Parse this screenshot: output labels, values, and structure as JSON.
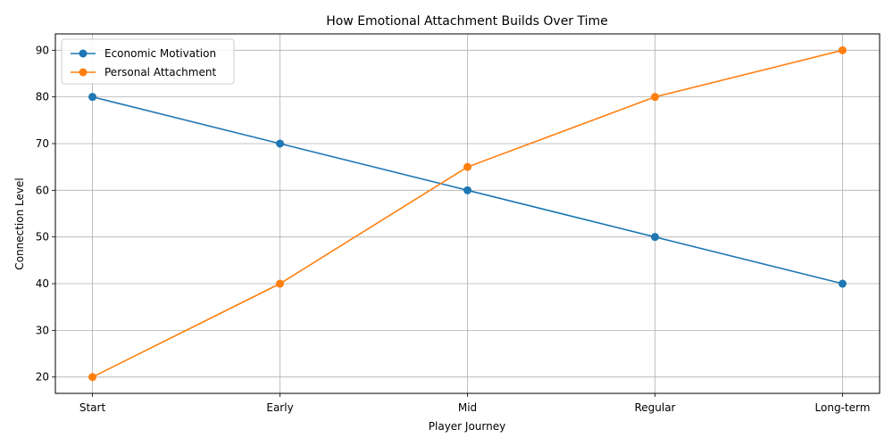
{
  "chart_data": {
    "type": "line",
    "title": "How Emotional Attachment Builds Over Time",
    "xlabel": "Player Journey",
    "ylabel": "Connection Level",
    "categories": [
      "Start",
      "Early",
      "Mid",
      "Regular",
      "Long-term"
    ],
    "series": [
      {
        "name": "Economic Motivation",
        "values": [
          80,
          70,
          60,
          50,
          40
        ],
        "color": "#1f77b4"
      },
      {
        "name": "Personal Attachment",
        "values": [
          20,
          40,
          65,
          80,
          90
        ],
        "color": "#ff7f0e"
      }
    ],
    "ylim": [
      16.5,
      93.5
    ],
    "yticks": [
      20,
      30,
      40,
      50,
      60,
      70,
      80,
      90
    ],
    "grid": true,
    "legend": "top-left"
  }
}
